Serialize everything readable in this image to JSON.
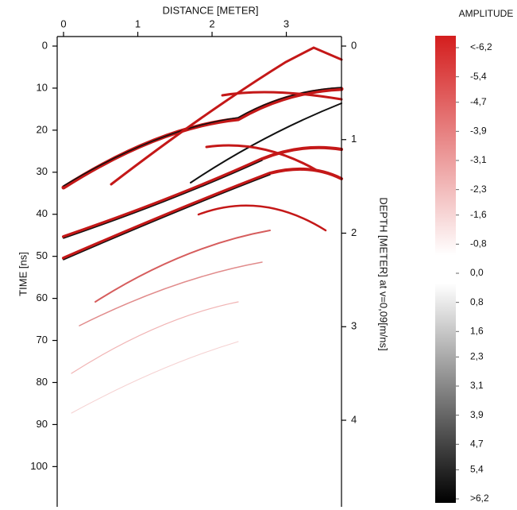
{
  "chart_data": {
    "type": "radargram",
    "xlabel": "DISTANCE [METER]",
    "ylabel": "TIME [ns]",
    "y2label": "DEPTH [METER] at v=0,09[m/ns]",
    "xlim": [
      0,
      3.7
    ],
    "xticks": [
      0,
      1,
      2,
      3
    ],
    "ylim": [
      0,
      109
    ],
    "yticks": [
      0,
      10,
      20,
      30,
      40,
      50,
      60,
      70,
      80,
      90,
      100
    ],
    "y2lim": [
      0,
      4.9
    ],
    "y2ticks": [
      0,
      1,
      2,
      3,
      4
    ],
    "colorbar": {
      "label": "AMPLITUDE",
      "colors": [
        "#d41e1e",
        "#ffffff",
        "#000000"
      ],
      "ticks": [
        {
          "value": -6.2,
          "label": "<-6,2"
        },
        {
          "value": -5.4,
          "label": "-5,4"
        },
        {
          "value": -4.7,
          "label": "-4,7"
        },
        {
          "value": -3.9,
          "label": "-3,9"
        },
        {
          "value": -3.1,
          "label": "-3,1"
        },
        {
          "value": -2.3,
          "label": "-2,3"
        },
        {
          "value": -1.6,
          "label": "-1,6"
        },
        {
          "value": -0.8,
          "label": "-0,8"
        },
        {
          "value": 0,
          "label": "0,0"
        },
        {
          "value": 0.8,
          "label": "0,8"
        },
        {
          "value": 1.6,
          "label": "1,6"
        },
        {
          "value": 2.3,
          "label": "2,3"
        },
        {
          "value": 3.1,
          "label": "3,1"
        },
        {
          "value": 3.9,
          "label": "3,9"
        },
        {
          "value": 4.7,
          "label": "4,7"
        },
        {
          "value": 5.4,
          "label": "5,4"
        },
        {
          "value": 6.2,
          "label": ">6,2"
        }
      ]
    }
  }
}
